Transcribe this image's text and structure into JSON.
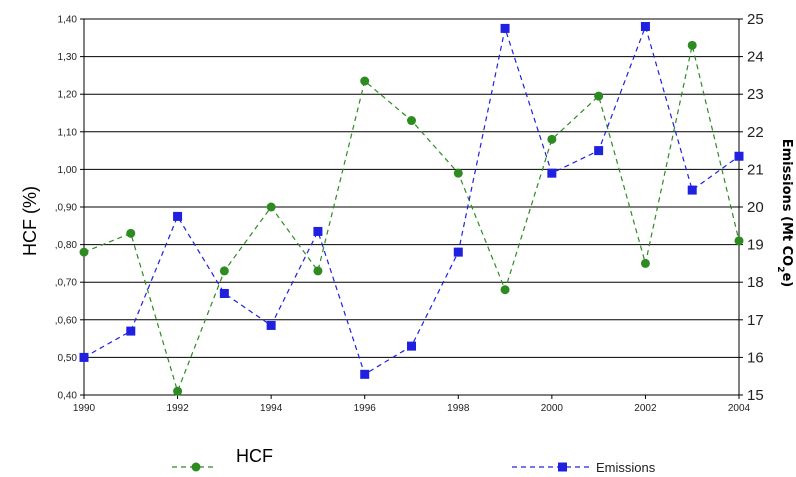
{
  "chart_data": {
    "type": "line",
    "x": [
      1990,
      1991,
      1992,
      1993,
      1994,
      1995,
      1996,
      1997,
      1998,
      1999,
      2000,
      2001,
      2002,
      2003,
      2004
    ],
    "x_tick_labels": [
      "1990",
      "1992",
      "1994",
      "1996",
      "1998",
      "2000",
      "2002",
      "2004"
    ],
    "xlim": [
      1990,
      2004
    ],
    "y_left_tick_labels": [
      "0,40",
      "0,50",
      ",0,60",
      ",0,70",
      ",0,80",
      ",0,90",
      "1,00",
      "1,10",
      "1,20",
      "1,30",
      "1,40"
    ],
    "y_right_tick_labels": [
      "15",
      "16",
      "17",
      "18",
      "19",
      "20",
      "21",
      "22",
      "23",
      "24",
      "25"
    ],
    "ylabel_left": "HCF (%)",
    "ylabel_right": "Emissions (Mt CO2e)",
    "ylabel_right_main": "Emissions (Mt CO",
    "ylabel_right_sub": "2",
    "ylabel_right_end": "e)",
    "ylim_left": [
      0.4,
      1.4
    ],
    "ylim_right": [
      15,
      25
    ],
    "grid": "horizontal",
    "legend_position": "bottom",
    "series": [
      {
        "name": "HCF",
        "axis": "left",
        "color": "#2e8b22",
        "marker": "circle",
        "line_style": "dashed",
        "values": [
          0.78,
          0.83,
          0.41,
          0.73,
          0.9,
          0.73,
          1.235,
          1.13,
          0.99,
          0.68,
          1.08,
          1.195,
          0.75,
          1.33,
          0.81
        ]
      },
      {
        "name": "Emissions",
        "axis": "right",
        "color": "#2020e0",
        "marker": "square",
        "line_style": "dashed",
        "values": [
          16.0,
          16.7,
          19.75,
          17.7,
          16.85,
          19.35,
          15.55,
          16.3,
          18.8,
          24.75,
          20.9,
          21.5,
          24.8,
          20.45,
          21.35
        ]
      }
    ]
  },
  "legend": {
    "hcf_label": "HCF",
    "emissions_label": "Emissions"
  }
}
